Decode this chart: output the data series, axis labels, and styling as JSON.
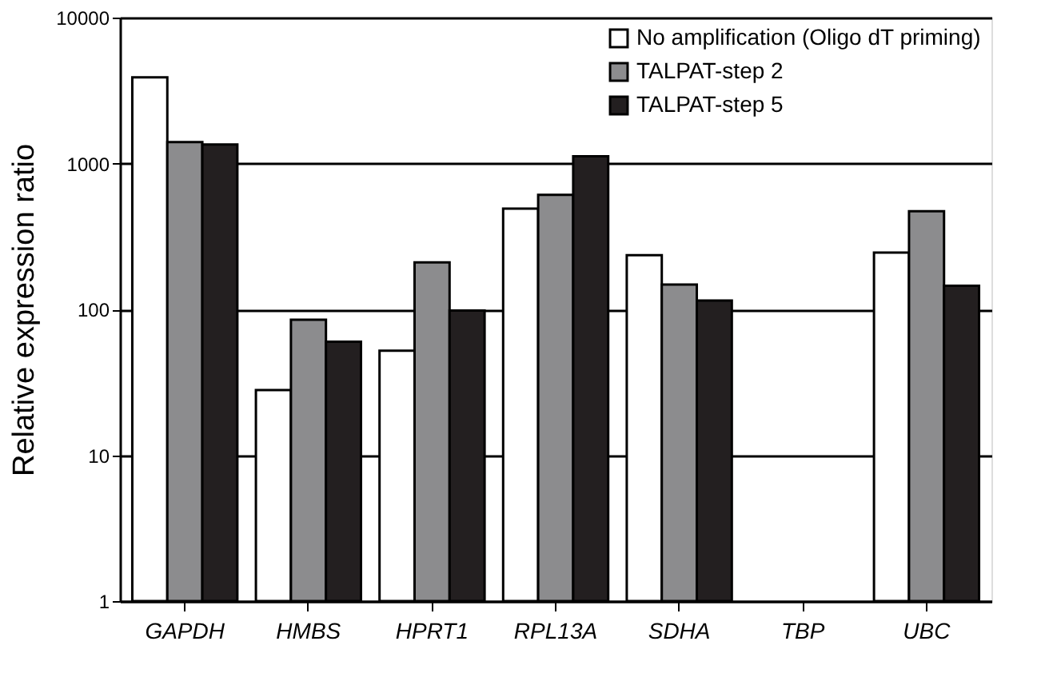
{
  "chart_data": {
    "type": "bar",
    "ylabel": "Relative expression ratio",
    "categories": [
      "GAPDH",
      "HMBS",
      "HPRT1",
      "RPL13A",
      "SDHA",
      "TBP",
      "UBC"
    ],
    "series": [
      {
        "name": "No amplification (Oligo dT priming)",
        "color": "#ffffff",
        "values": [
          3900,
          28,
          52,
          490,
          235,
          null,
          245
        ]
      },
      {
        "name": "TALPAT-step 2",
        "color": "#8c8c8e",
        "values": [
          1400,
          85,
          210,
          610,
          148,
          null,
          470
        ]
      },
      {
        "name": "TALPAT-step 5",
        "color": "#231f20",
        "values": [
          1350,
          60,
          98,
          1120,
          115,
          null,
          145
        ]
      }
    ],
    "log": true,
    "ylim": [
      1,
      10000
    ],
    "yticks": [
      1,
      10,
      100,
      1000,
      10000
    ],
    "grid": "y",
    "legend": "top right"
  }
}
